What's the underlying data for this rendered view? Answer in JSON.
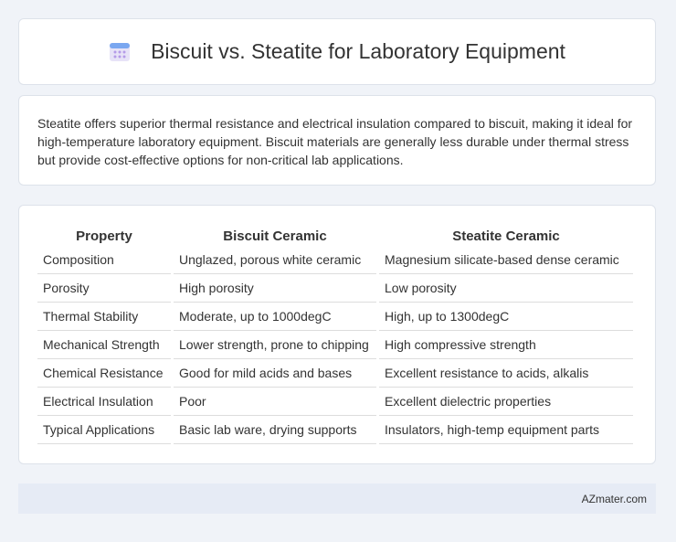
{
  "header": {
    "title": "Biscuit vs. Steatite for Laboratory Equipment"
  },
  "summary": "Steatite offers superior thermal resistance and electrical insulation compared to biscuit, making it ideal for high-temperature laboratory equipment. Biscuit materials are generally less durable under thermal stress but provide cost-effective options for non-critical lab applications.",
  "table": {
    "columns": [
      "Property",
      "Biscuit Ceramic",
      "Steatite Ceramic"
    ],
    "rows": [
      [
        "Composition",
        "Unglazed, porous white ceramic",
        "Magnesium silicate-based dense ceramic"
      ],
      [
        "Porosity",
        "High porosity",
        "Low porosity"
      ],
      [
        "Thermal Stability",
        "Moderate, up to 1000degC",
        "High, up to 1300degC"
      ],
      [
        "Mechanical Strength",
        "Lower strength, prone to chipping",
        "High compressive strength"
      ],
      [
        "Chemical Resistance",
        "Good for mild acids and bases",
        "Excellent resistance to acids, alkalis"
      ],
      [
        "Electrical Insulation",
        "Poor",
        "Excellent dielectric properties"
      ],
      [
        "Typical Applications",
        "Basic lab ware, drying supports",
        "Insulators, high-temp equipment parts"
      ]
    ]
  },
  "footer": "AZmater.com"
}
